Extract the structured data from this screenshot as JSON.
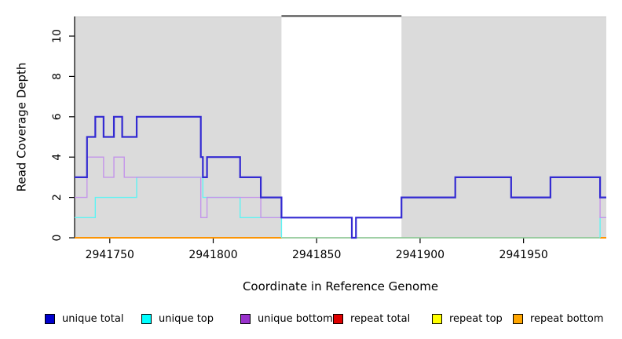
{
  "figure": {
    "xlabel": "Coordinate in Reference Genome",
    "ylabel": "Read Coverage Depth"
  },
  "chart_data": {
    "type": "line",
    "subtype": "step-coverage-plot",
    "title": "",
    "xlabel": "Coordinate in Reference Genome",
    "ylabel": "Read Coverage Depth",
    "xlim": [
      2941733,
      2941990
    ],
    "ylim": [
      0,
      11
    ],
    "x_ticks": [
      2941750,
      2941800,
      2941850,
      2941900,
      2941950
    ],
    "y_ticks": [
      0,
      2,
      4,
      6,
      8,
      10
    ],
    "grid": false,
    "legend_position": "bottom-horizontal",
    "background_shading": {
      "color": "#DBDBDB",
      "top_edge_color": "#C9C9C9",
      "regions": [
        [
          2941733,
          2941833
        ],
        [
          2941891,
          2941990
        ]
      ]
    },
    "gap_top_bar": {
      "color": "#4F4F4F",
      "region": [
        2941833,
        2941891
      ]
    },
    "zero_baseline_segment": {
      "color": "#95D69E",
      "region": [
        2941833,
        2941987
      ],
      "value": 0
    },
    "series": [
      {
        "name": "repeat total",
        "color": "#DD0000",
        "width": 1.6,
        "steps": [
          [
            [
              2941733,
              0
            ],
            [
              2941833,
              0
            ]
          ],
          [
            [
              2941987,
              0
            ],
            [
              2941990,
              0
            ]
          ]
        ]
      },
      {
        "name": "repeat top",
        "color": "#FFFF00",
        "width": 1.6,
        "steps": [
          [
            [
              2941733,
              0
            ],
            [
              2941833,
              0
            ]
          ],
          [
            [
              2941987,
              0
            ],
            [
              2941990,
              0
            ]
          ]
        ]
      },
      {
        "name": "repeat bottom",
        "color": "#FF9100",
        "width": 1.8,
        "steps": [
          [
            [
              2941733,
              0
            ],
            [
              2941833,
              0
            ]
          ],
          [
            [
              2941987,
              0
            ],
            [
              2941990,
              0
            ]
          ]
        ]
      },
      {
        "name": "unique top",
        "color": "#5FF3F3",
        "width": 1.4,
        "steps": [
          [
            [
              2941733,
              1
            ],
            [
              2941743,
              2
            ],
            [
              2941763,
              3
            ],
            [
              2941795,
              2
            ],
            [
              2941813,
              1
            ],
            [
              2941833,
              0
            ]
          ],
          [
            [
              2941987,
              0
            ],
            [
              2941987,
              1
            ],
            [
              2941990,
              1
            ]
          ]
        ]
      },
      {
        "name": "unique bottom",
        "color": "#C495EA",
        "width": 1.4,
        "steps": [
          [
            [
              2941733,
              2
            ],
            [
              2941739,
              4
            ],
            [
              2941747,
              3
            ],
            [
              2941752,
              4
            ],
            [
              2941757,
              3
            ],
            [
              2941794,
              1
            ],
            [
              2941797,
              2
            ],
            [
              2941823,
              1
            ],
            [
              2941867,
              0
            ],
            [
              2941869,
              1
            ],
            [
              2941891,
              2
            ],
            [
              2941917,
              3
            ],
            [
              2941944,
              2
            ],
            [
              2941963,
              3
            ],
            [
              2941987,
              1
            ],
            [
              2941990,
              1
            ]
          ]
        ]
      },
      {
        "name": "unique total",
        "color": "#332AD2",
        "width": 2.2,
        "steps": [
          [
            [
              2941733,
              3
            ],
            [
              2941739,
              5
            ],
            [
              2941743,
              6
            ],
            [
              2941747,
              5
            ],
            [
              2941752,
              6
            ],
            [
              2941756,
              5
            ],
            [
              2941763,
              6
            ],
            [
              2941794,
              4
            ],
            [
              2941795,
              3
            ],
            [
              2941797,
              4
            ],
            [
              2941813,
              3
            ],
            [
              2941823,
              2
            ],
            [
              2941833,
              1
            ],
            [
              2941867,
              0
            ],
            [
              2941869,
              1
            ],
            [
              2941891,
              2
            ],
            [
              2941917,
              3
            ],
            [
              2941944,
              2
            ],
            [
              2941963,
              3
            ],
            [
              2941987,
              2
            ],
            [
              2941990,
              2
            ]
          ]
        ]
      }
    ],
    "legend": [
      {
        "label": "unique total",
        "color": "#0000CD"
      },
      {
        "label": "unique top",
        "color": "#00FFFF"
      },
      {
        "label": "unique bottom",
        "color": "#9932CC"
      },
      {
        "label": "repeat total",
        "color": "#DD0000"
      },
      {
        "label": "repeat top",
        "color": "#FFFF00"
      },
      {
        "label": "repeat bottom",
        "color": "#FFA500"
      }
    ]
  }
}
